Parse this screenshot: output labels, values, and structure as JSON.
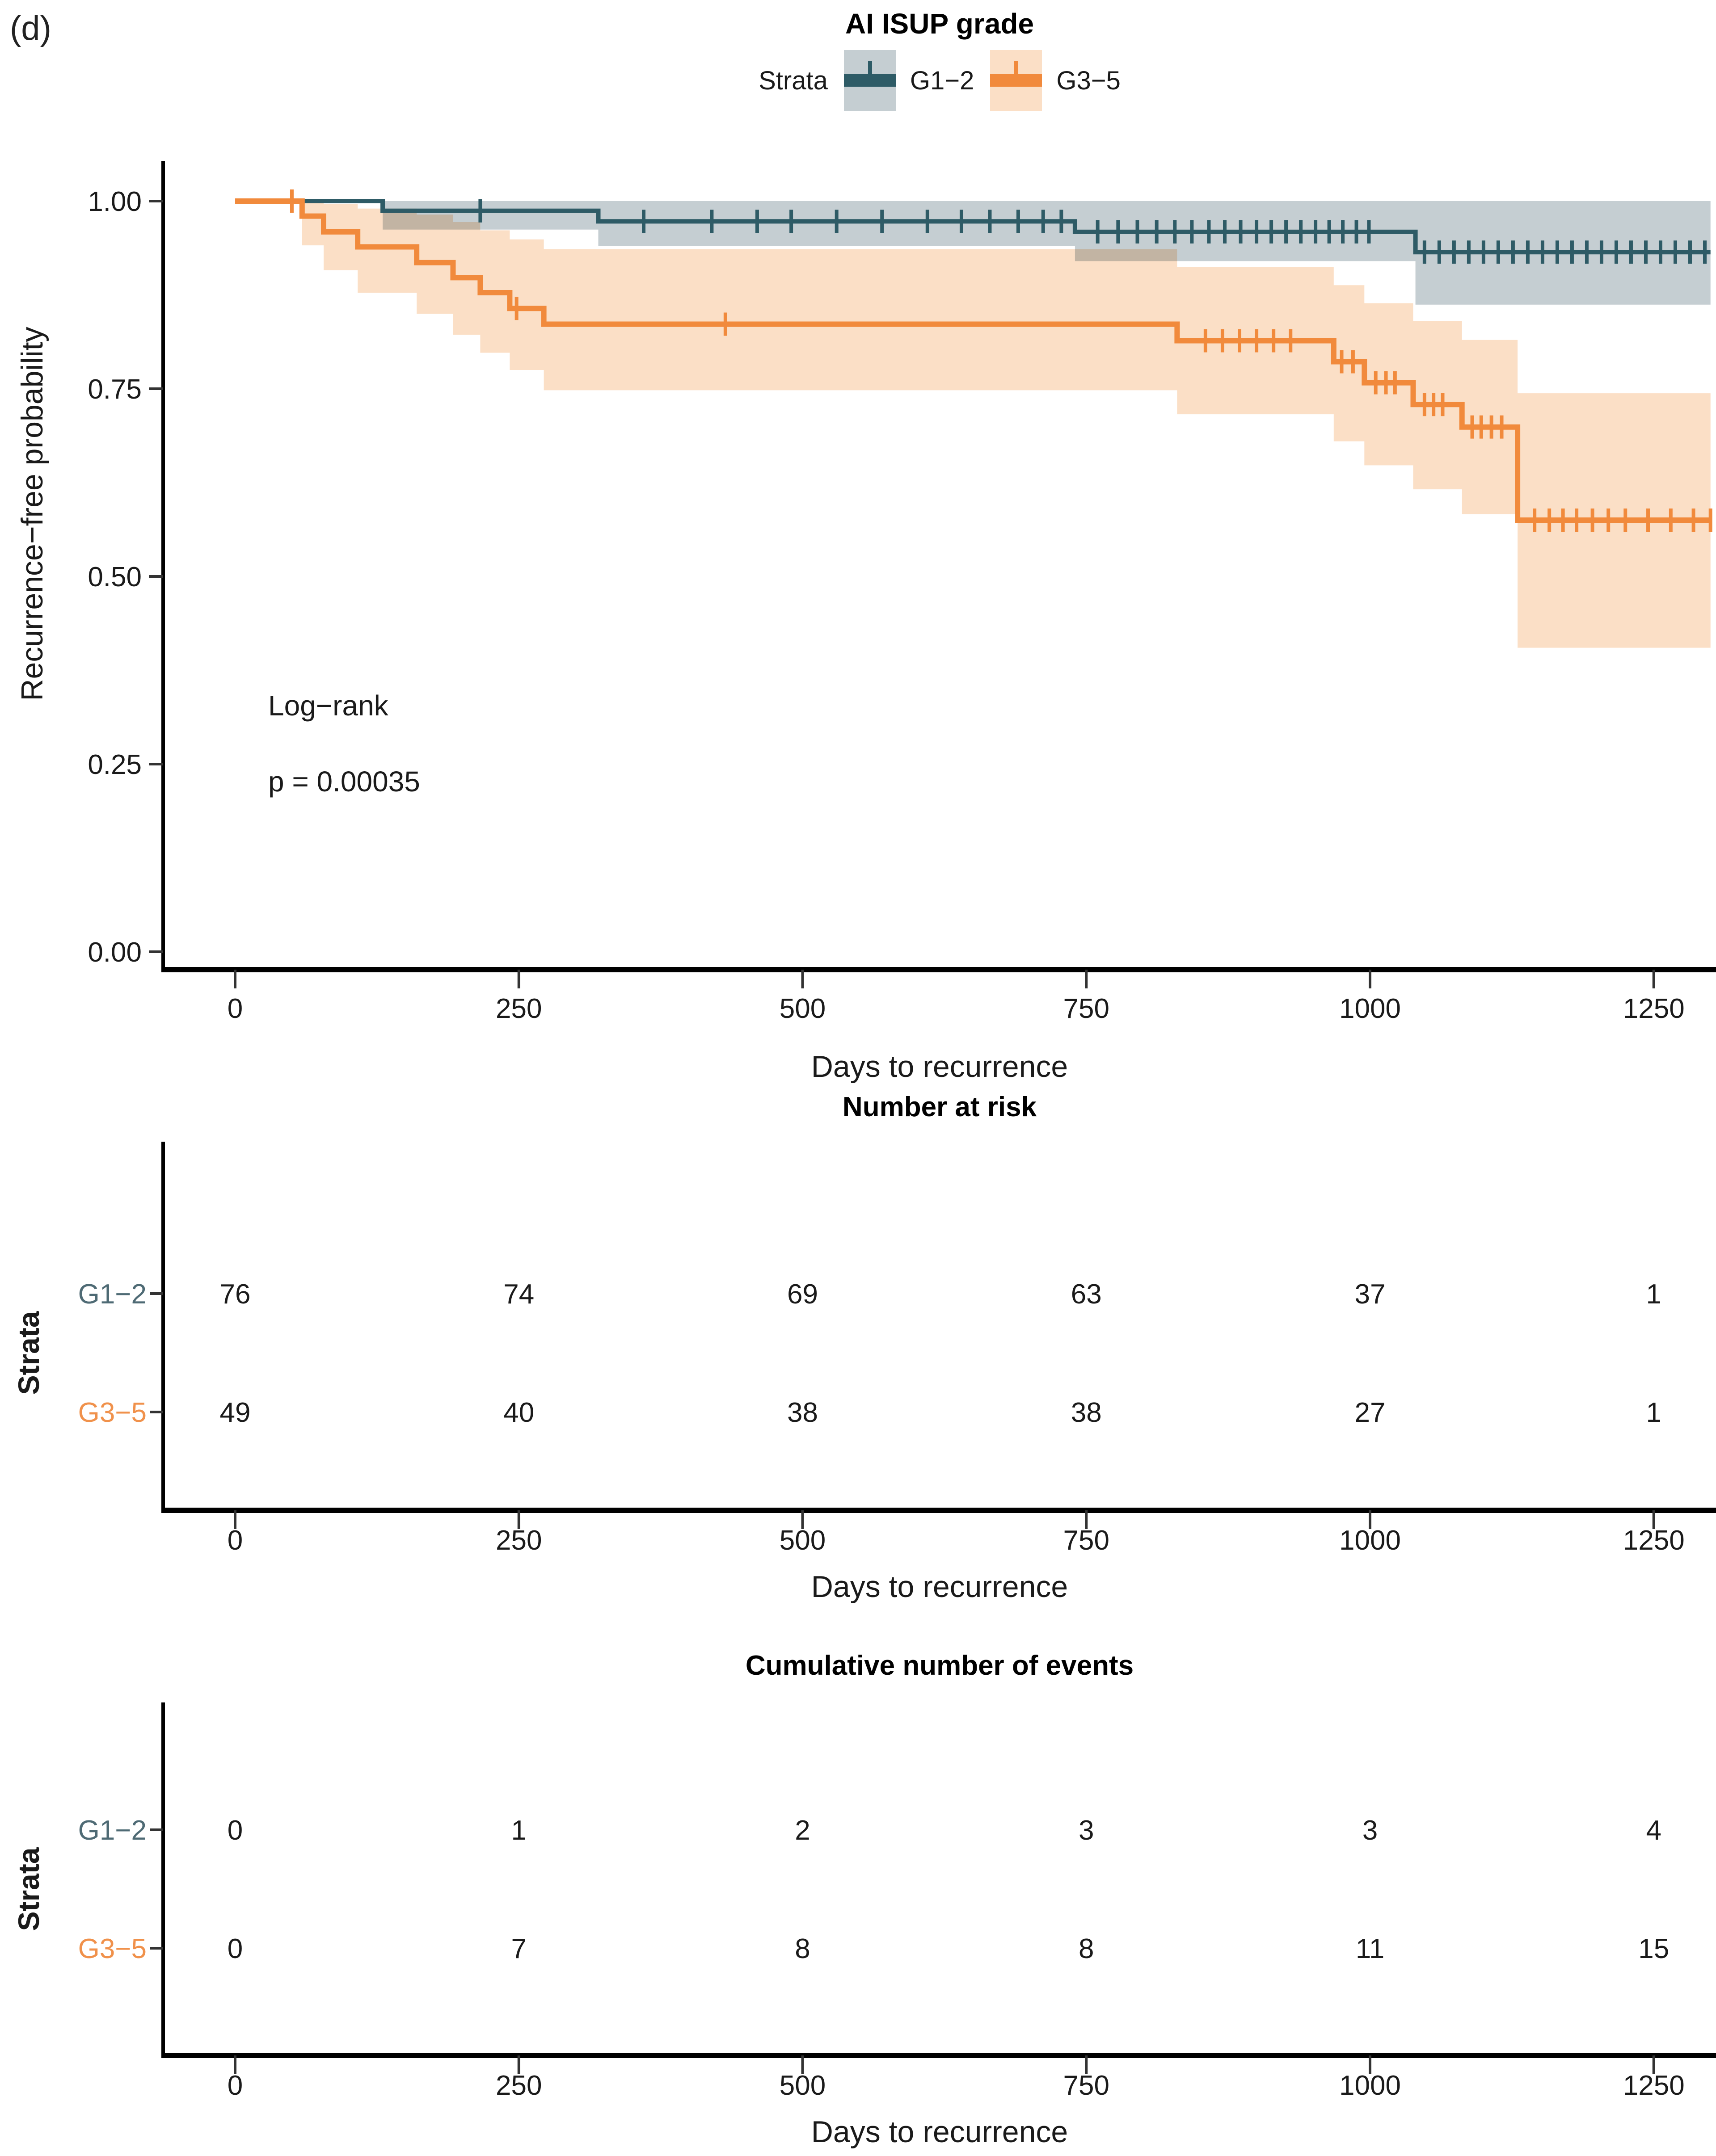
{
  "panel_label": "(d)",
  "chart_data": {
    "type": "line",
    "subtype": "kaplan-meier-step",
    "title": "AI  ISUP grade",
    "xlabel": "Days to recurrence",
    "ylabel": "Recurrence−free probability",
    "legend_title": "Strata",
    "legend_position": "top",
    "grid": false,
    "xlim": [
      0,
      1300
    ],
    "ylim": [
      0,
      1
    ],
    "xticks": [
      0,
      250,
      500,
      750,
      1000,
      1250
    ],
    "yticks": [
      "1.00",
      "0.75",
      "0.50",
      "0.25",
      "0.00"
    ],
    "annotations": [
      "Log−rank",
      "p = 0.00035"
    ],
    "series": [
      {
        "name": "G1−2",
        "color": "#2e5b66",
        "band_color": "#c5ced2",
        "label_color": "#4e6a74",
        "steps": [
          [
            0,
            1
          ],
          [
            130,
            0.987
          ],
          [
            320,
            0.973
          ],
          [
            740,
            0.959
          ],
          [
            1040,
            0.932
          ],
          [
            1300,
            0.932
          ]
        ],
        "band": [
          [
            0,
            1,
            1
          ],
          [
            130,
            1,
            0.962
          ],
          [
            320,
            1,
            0.94
          ],
          [
            740,
            1,
            0.92
          ],
          [
            1040,
            1,
            0.862
          ],
          [
            1300,
            1,
            0.862
          ]
        ],
        "censors": [
          216,
          360,
          420,
          460,
          490,
          530,
          570,
          610,
          640,
          665,
          690,
          712,
          728,
          760,
          778,
          795,
          812,
          828,
          843,
          858,
          872,
          886,
          900,
          913,
          926,
          939,
          952,
          964,
          976,
          988,
          999,
          1048,
          1061,
          1074,
          1087,
          1100,
          1113,
          1126,
          1139,
          1152,
          1165,
          1178,
          1191,
          1204,
          1217,
          1230,
          1243,
          1256,
          1269,
          1282,
          1295
        ]
      },
      {
        "name": "G3−5",
        "color": "#f18a3c",
        "band_color": "#fbdfc6",
        "label_color": "#f0914b",
        "steps": [
          [
            0,
            1
          ],
          [
            59,
            0.98
          ],
          [
            78,
            0.959
          ],
          [
            108,
            0.939
          ],
          [
            160,
            0.918
          ],
          [
            192,
            0.898
          ],
          [
            216,
            0.878
          ],
          [
            242,
            0.857
          ],
          [
            272,
            0.836
          ],
          [
            830,
            0.814
          ],
          [
            968,
            0.786
          ],
          [
            995,
            0.758
          ],
          [
            1038,
            0.729
          ],
          [
            1081,
            0.699
          ],
          [
            1130,
            0.575
          ],
          [
            1300,
            0.575
          ]
        ],
        "band": [
          [
            0,
            1,
            1
          ],
          [
            59,
            0.999,
            0.941
          ],
          [
            78,
            0.996,
            0.908
          ],
          [
            108,
            0.99,
            0.878
          ],
          [
            160,
            0.982,
            0.85
          ],
          [
            192,
            0.972,
            0.822
          ],
          [
            216,
            0.961,
            0.798
          ],
          [
            242,
            0.949,
            0.775
          ],
          [
            272,
            0.936,
            0.748
          ],
          [
            830,
            0.912,
            0.716
          ],
          [
            968,
            0.888,
            0.68
          ],
          [
            995,
            0.864,
            0.648
          ],
          [
            1038,
            0.84,
            0.616
          ],
          [
            1081,
            0.815,
            0.583
          ],
          [
            1130,
            0.744,
            0.405
          ],
          [
            1300,
            0.744,
            0.405
          ]
        ],
        "censors": [
          50,
          248,
          432,
          855,
          870,
          885,
          900,
          915,
          930,
          975,
          985,
          1005,
          1014,
          1022,
          1048,
          1056,
          1064,
          1090,
          1098,
          1107,
          1116,
          1145,
          1158,
          1170,
          1182,
          1196,
          1210,
          1225,
          1245,
          1265,
          1285,
          1300
        ]
      }
    ],
    "risk_table": {
      "title": "Number at risk",
      "ylabel": "Strata",
      "xlabel": "Days to recurrence",
      "xticks": [
        0,
        250,
        500,
        750,
        1000,
        1250
      ],
      "rows": [
        {
          "name": "G1−2",
          "color": "#4e6a74",
          "values": [
            "76",
            "74",
            "69",
            "63",
            "37",
            "1"
          ]
        },
        {
          "name": "G3−5",
          "color": "#f0914b",
          "values": [
            "49",
            "40",
            "38",
            "38",
            "27",
            "1"
          ]
        }
      ]
    },
    "events_table": {
      "title": "Cumulative number of events",
      "ylabel": "Strata",
      "xlabel": "Days to recurrence",
      "xticks": [
        0,
        250,
        500,
        750,
        1000,
        1250
      ],
      "rows": [
        {
          "name": "G1−2",
          "color": "#4e6a74",
          "values": [
            "0",
            "1",
            "2",
            "3",
            "3",
            "4"
          ]
        },
        {
          "name": "G3−5",
          "color": "#f0914b",
          "values": [
            "0",
            "7",
            "8",
            "8",
            "11",
            "15"
          ]
        }
      ]
    }
  }
}
